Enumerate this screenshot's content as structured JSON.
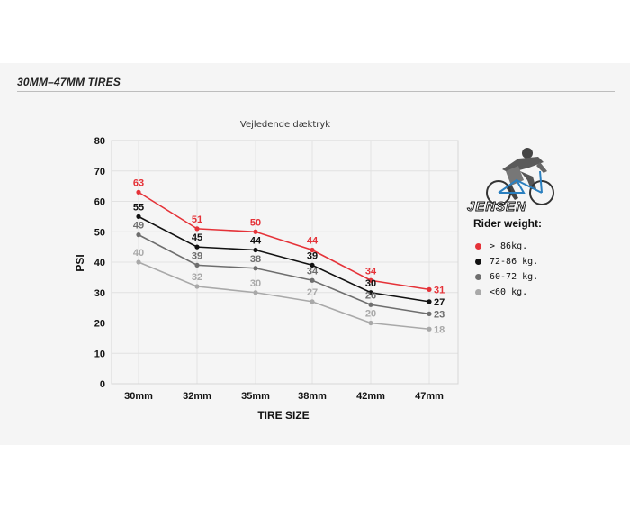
{
  "section": {
    "heading": "30MM–47MM TIRES"
  },
  "legend": {
    "logo_text": "JENSEN",
    "title": "Rider weight:"
  },
  "chart_data": {
    "type": "line",
    "title": "Vejledende dæktryk",
    "xlabel": "TIRE SIZE",
    "ylabel": "PSI",
    "categories": [
      "30mm",
      "32mm",
      "35mm",
      "38mm",
      "42mm",
      "47mm"
    ],
    "ylim": [
      0,
      80
    ],
    "yticks": [
      0,
      10,
      20,
      30,
      40,
      50,
      60,
      70,
      80
    ],
    "grid": true,
    "legend_position": "right",
    "series": [
      {
        "name": "> 86kg.",
        "color": "#e53238",
        "values": [
          63,
          51,
          50,
          44,
          34,
          31
        ]
      },
      {
        "name": "72-86 kg.",
        "color": "#111111",
        "values": [
          55,
          45,
          44,
          39,
          30,
          27
        ]
      },
      {
        "name": "60-72 kg.",
        "color": "#6e6e6e",
        "values": [
          49,
          39,
          38,
          34,
          26,
          23
        ]
      },
      {
        "name": "<60 kg.",
        "color": "#a9a9a9",
        "values": [
          40,
          32,
          30,
          27,
          20,
          18
        ]
      }
    ]
  }
}
